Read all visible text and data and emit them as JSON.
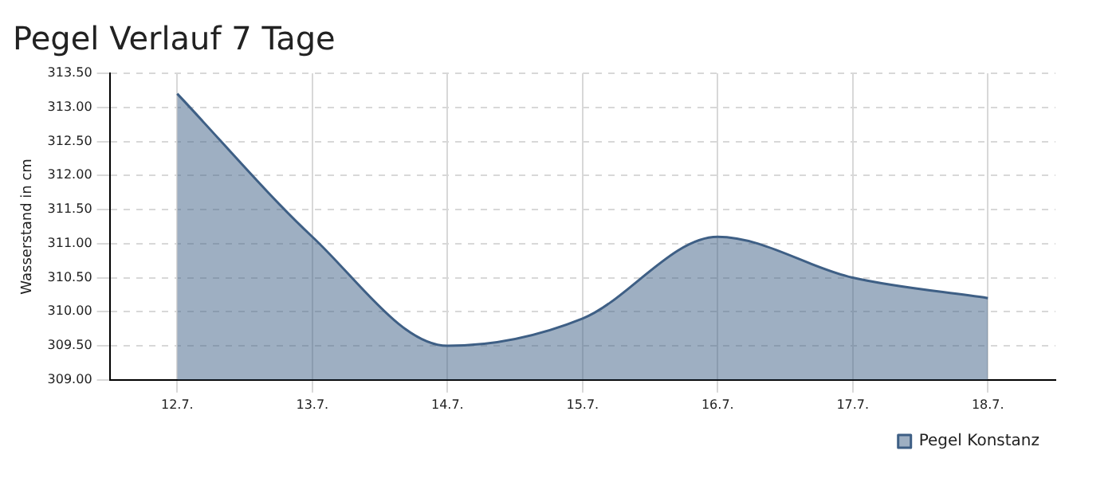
{
  "chart_data": {
    "type": "area",
    "title": "Pegel Verlauf 7 Tage",
    "ylabel": "Wasserstand in cm",
    "categories": [
      "12.7.",
      "13.7.",
      "14.7.",
      "15.7.",
      "16.7.",
      "17.7.",
      "18.7."
    ],
    "series": [
      {
        "name": "Pegel Konstanz",
        "color": "#3e5f85",
        "values": [
          313.2,
          311.1,
          309.5,
          309.9,
          311.1,
          310.5,
          310.2
        ]
      }
    ],
    "ylim": [
      309,
      313.5
    ],
    "yticks": [
      {
        "value": 309,
        "label": "309.00"
      },
      {
        "value": 309.5,
        "label": "309.50"
      },
      {
        "value": 310,
        "label": "310.00"
      },
      {
        "value": 310.5,
        "label": "310.50"
      },
      {
        "value": 311,
        "label": "311.00"
      },
      {
        "value": 311.5,
        "label": "311.50"
      },
      {
        "value": 312,
        "label": "312.00"
      },
      {
        "value": 312.5,
        "label": "312.50"
      },
      {
        "value": 313,
        "label": "313.00"
      },
      {
        "value": 313.5,
        "label": "313.50"
      }
    ],
    "grid": true,
    "legend": "bottom right"
  }
}
